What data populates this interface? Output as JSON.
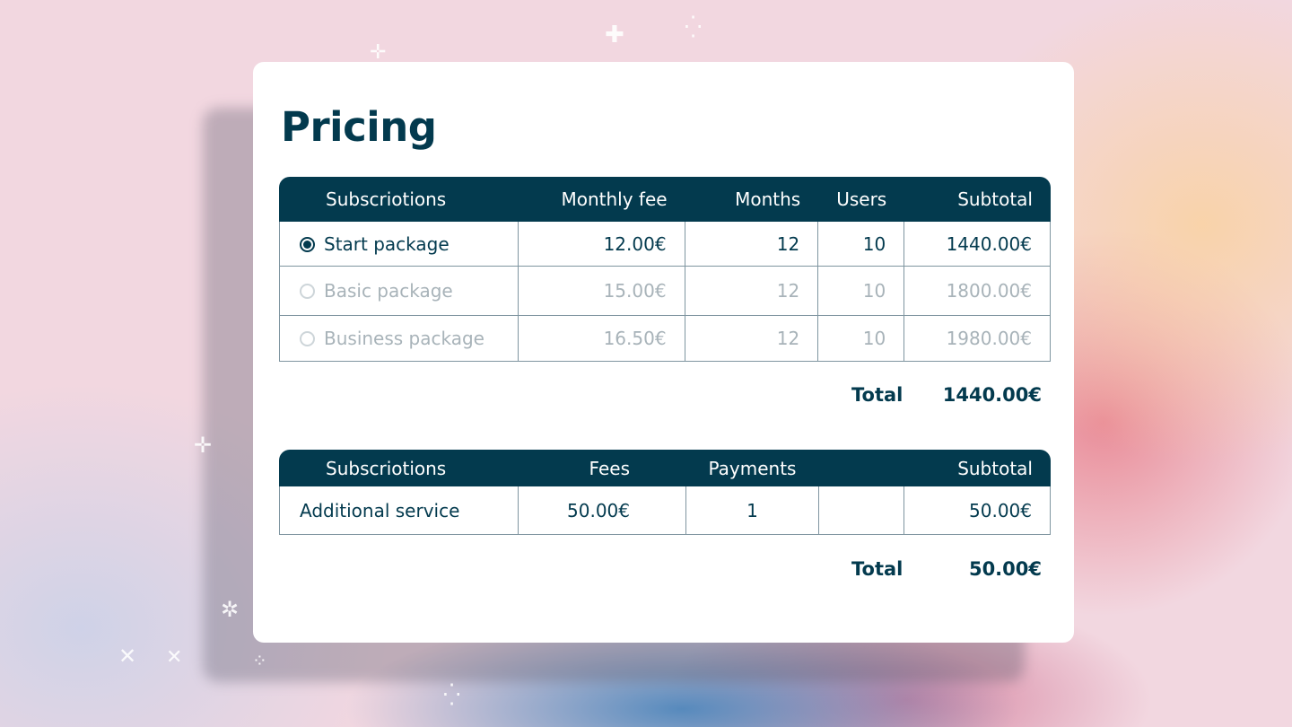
{
  "title": "Pricing",
  "subscriptions_table": {
    "headers": [
      "Subscriotions",
      "Monthly fee",
      "Months",
      "Users",
      "Subtotal"
    ],
    "rows": [
      {
        "name": "Start package",
        "fee": "12.00€",
        "months": "12",
        "users": "10",
        "subtotal": "1440.00€",
        "selected": true
      },
      {
        "name": "Basic package",
        "fee": "15.00€",
        "months": "12",
        "users": "10",
        "subtotal": "1800.00€",
        "selected": false
      },
      {
        "name": "Business package",
        "fee": "16.50€",
        "months": "12",
        "users": "10",
        "subtotal": "1980.00€",
        "selected": false
      }
    ],
    "total_label": "Total",
    "total_value": "1440.00€"
  },
  "services_table": {
    "headers": [
      "Subscriotions",
      "Fees",
      "Payments",
      "",
      "Subtotal"
    ],
    "rows": [
      {
        "name": "Additional service",
        "fee": "50.00€",
        "payments": "1",
        "extra": "",
        "subtotal": "50.00€"
      }
    ],
    "total_label": "Total",
    "total_value": "50.00€"
  },
  "colors": {
    "primary": "#033a4e",
    "inactive_text": "#a8b3b9",
    "card": "#ffffff"
  },
  "icons": {
    "radio_selected": "radio-selected-icon",
    "radio_unselected": "radio-unselected-icon",
    "decor": "sparkle-icon"
  }
}
